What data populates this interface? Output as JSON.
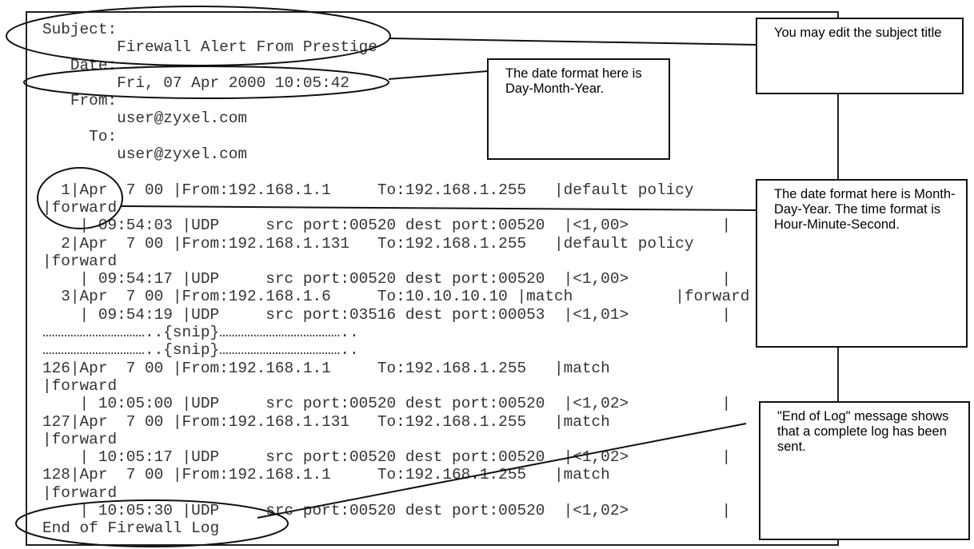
{
  "email": {
    "header_lines": [
      "Subject:",
      "        Firewall Alert From Prestige",
      "   Date:",
      "        Fri, 07 Apr 2000 10:05:42",
      "   From:",
      "        user@zyxel.com",
      "     To:",
      "        user@zyxel.com",
      ""
    ],
    "log_lines": [
      "  1|Apr  7 00 |From:192.168.1.1     To:192.168.1.255   |default policy",
      "|forward",
      "    | 09:54:03 |UDP     src port:00520 dest port:00520  |<1,00>          |",
      "  2|Apr  7 00 |From:192.168.1.131   To:192.168.1.255   |default policy",
      "|forward",
      "    | 09:54:17 |UDP     src port:00520 dest port:00520  |<1,00>          |",
      "  3|Apr  7 00 |From:192.168.1.6     To:10.10.10.10 |match           |forward",
      "    | 09:54:19 |UDP     src port:03516 dest port:00053  |<1,01>          |",
      "……………………………..{snip}…………………………………..",
      "……………………………..{snip}…………………………………..",
      "126|Apr  7 00 |From:192.168.1.1     To:192.168.1.255   |match",
      "|forward",
      "    | 10:05:00 |UDP     src port:00520 dest port:00520  |<1,02>          |",
      "127|Apr  7 00 |From:192.168.1.131   To:192.168.1.255   |match",
      "|forward",
      "    | 10:05:17 |UDP     src port:00520 dest port:00520  |<1,02>          |",
      "128|Apr  7 00 |From:192.168.1.1     To:192.168.1.255   |match",
      "|forward",
      "    | 10:05:30 |UDP     src port:00520 dest port:00520  |<1,02>          |",
      "End of Firewall Log"
    ]
  },
  "callouts": {
    "subject": "You may edit the subject title",
    "date_header": "The date format here is Day-Month-Year.",
    "date_log": "The date format here is Month-Day-Year. The time format is Hour-Minute-Second.",
    "end_of_log": "\"End of Log\" message shows that a complete log has been sent."
  },
  "colors": {
    "line": "#111111",
    "text": "#333333"
  }
}
